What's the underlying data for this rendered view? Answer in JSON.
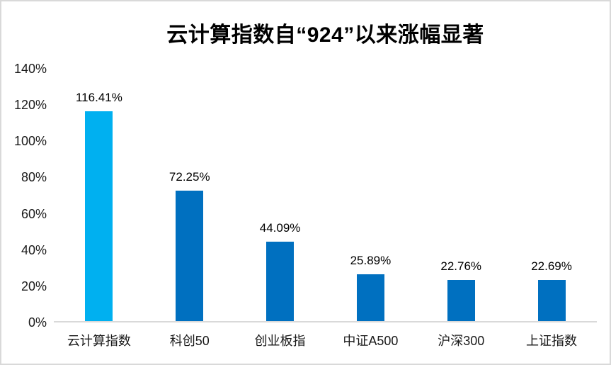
{
  "chart_data": {
    "type": "bar",
    "title": "云计算指数自“924”以来涨幅显著",
    "categories": [
      "云计算指数",
      "科创50",
      "创业板指",
      "中证A500",
      "沪深300",
      "上证指数"
    ],
    "values": [
      116.41,
      72.25,
      44.09,
      25.89,
      22.76,
      22.69
    ],
    "value_labels": [
      "116.41%",
      "72.25%",
      "44.09%",
      "25.89%",
      "22.76%",
      "22.69%"
    ],
    "bar_colors": [
      "#00B0F0",
      "#0070C0",
      "#0070C0",
      "#0070C0",
      "#0070C0",
      "#0070C0"
    ],
    "y_tick_values": [
      0,
      20,
      40,
      60,
      80,
      100,
      120,
      140
    ],
    "y_tick_labels": [
      "0%",
      "20%",
      "40%",
      "60%",
      "80%",
      "100%",
      "120%",
      "140%"
    ],
    "ylim": [
      0,
      140
    ],
    "xlabel": "",
    "ylabel": "",
    "grid": false,
    "legend_position": "none",
    "colors": {
      "highlight_bar": "#00B0F0",
      "default_bar": "#0070C0",
      "axis_line": "#D9D9D9",
      "text": "#000000",
      "background": "#FFFFFF"
    }
  }
}
